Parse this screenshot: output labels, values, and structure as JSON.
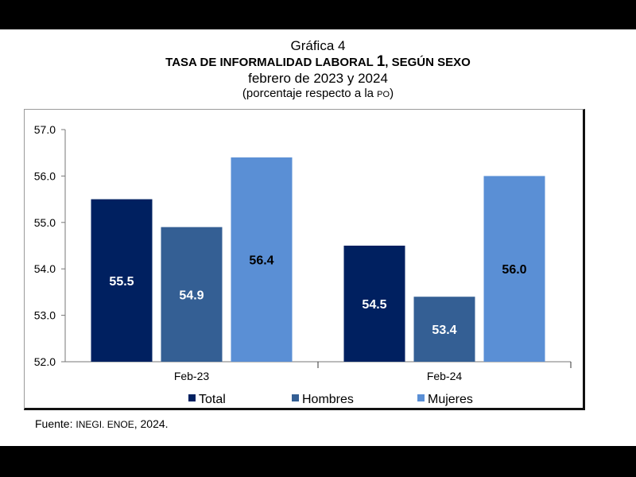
{
  "chart_data": {
    "type": "bar",
    "caption": "Gráfica 4",
    "title": "TASA DE INFORMALIDAD LABORAL",
    "title_footnote": "1",
    "title_suffix": ", SEGÚN SEXO",
    "subtitle": "febrero de 2023 y 2024",
    "unit_note_prefix": "(porcentaje respecto a la ",
    "unit_note_abbr": "PO",
    "unit_note_suffix": ")",
    "categories": [
      "Feb-23",
      "Feb-24"
    ],
    "series": [
      {
        "name": "Total",
        "color": "#002060",
        "label_color": "#ffffff",
        "values": [
          55.5,
          54.5
        ],
        "labels": [
          "55.5",
          "54.5"
        ]
      },
      {
        "name": "Hombres",
        "color": "#345f94",
        "label_color": "#ffffff",
        "values": [
          54.9,
          53.4
        ],
        "labels": [
          "54.9",
          "53.4"
        ]
      },
      {
        "name": "Mujeres",
        "color": "#5a8fd5",
        "label_color": "#000000",
        "values": [
          56.4,
          56.0
        ],
        "labels": [
          "56.4",
          "56.0"
        ]
      }
    ],
    "ylim": [
      52.0,
      57.0
    ],
    "yticks": [
      "52.0",
      "53.0",
      "54.0",
      "55.0",
      "56.0",
      "57.0"
    ],
    "ytick_values": [
      52,
      53,
      54,
      55,
      56,
      57
    ],
    "xlabel": "",
    "ylabel": "",
    "grid": false,
    "legend_position": "bottom"
  },
  "source": {
    "prefix": "Fuente: ",
    "org": "INEGI. ENOE",
    "suffix": ", 2024."
  }
}
